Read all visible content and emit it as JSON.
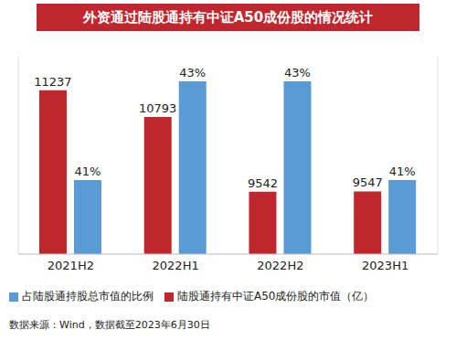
{
  "chart_data": {
    "type": "bar",
    "title": "外资通过陆股通持有中证A50成份股的情况统计",
    "source": "数据来源：Wind，数据截至2023年6月30日",
    "categories": [
      "2021H2",
      "2022H1",
      "2022H2",
      "2023H1"
    ],
    "series": [
      {
        "name": "陆股通持有中证A50成份股的市值（亿）",
        "color": "#c0262d",
        "values": [
          11237,
          10793,
          9542,
          9547
        ]
      },
      {
        "name": "占陆股通持股总市值的比例",
        "color": "#5b9bd5",
        "values": [
          41,
          43,
          43,
          41
        ],
        "value_labels": [
          "41%",
          "43%",
          "43%",
          "41%"
        ],
        "axis": "y2"
      }
    ],
    "ylim": [
      8500,
      11800
    ],
    "yticks": [
      8500,
      11800
    ],
    "y2lim": [
      39.5,
      43.5
    ],
    "y2ticks": [
      39.5,
      43.5
    ],
    "data_labels": true,
    "tick_labels": "x",
    "legend": "bottom",
    "grid": false
  }
}
